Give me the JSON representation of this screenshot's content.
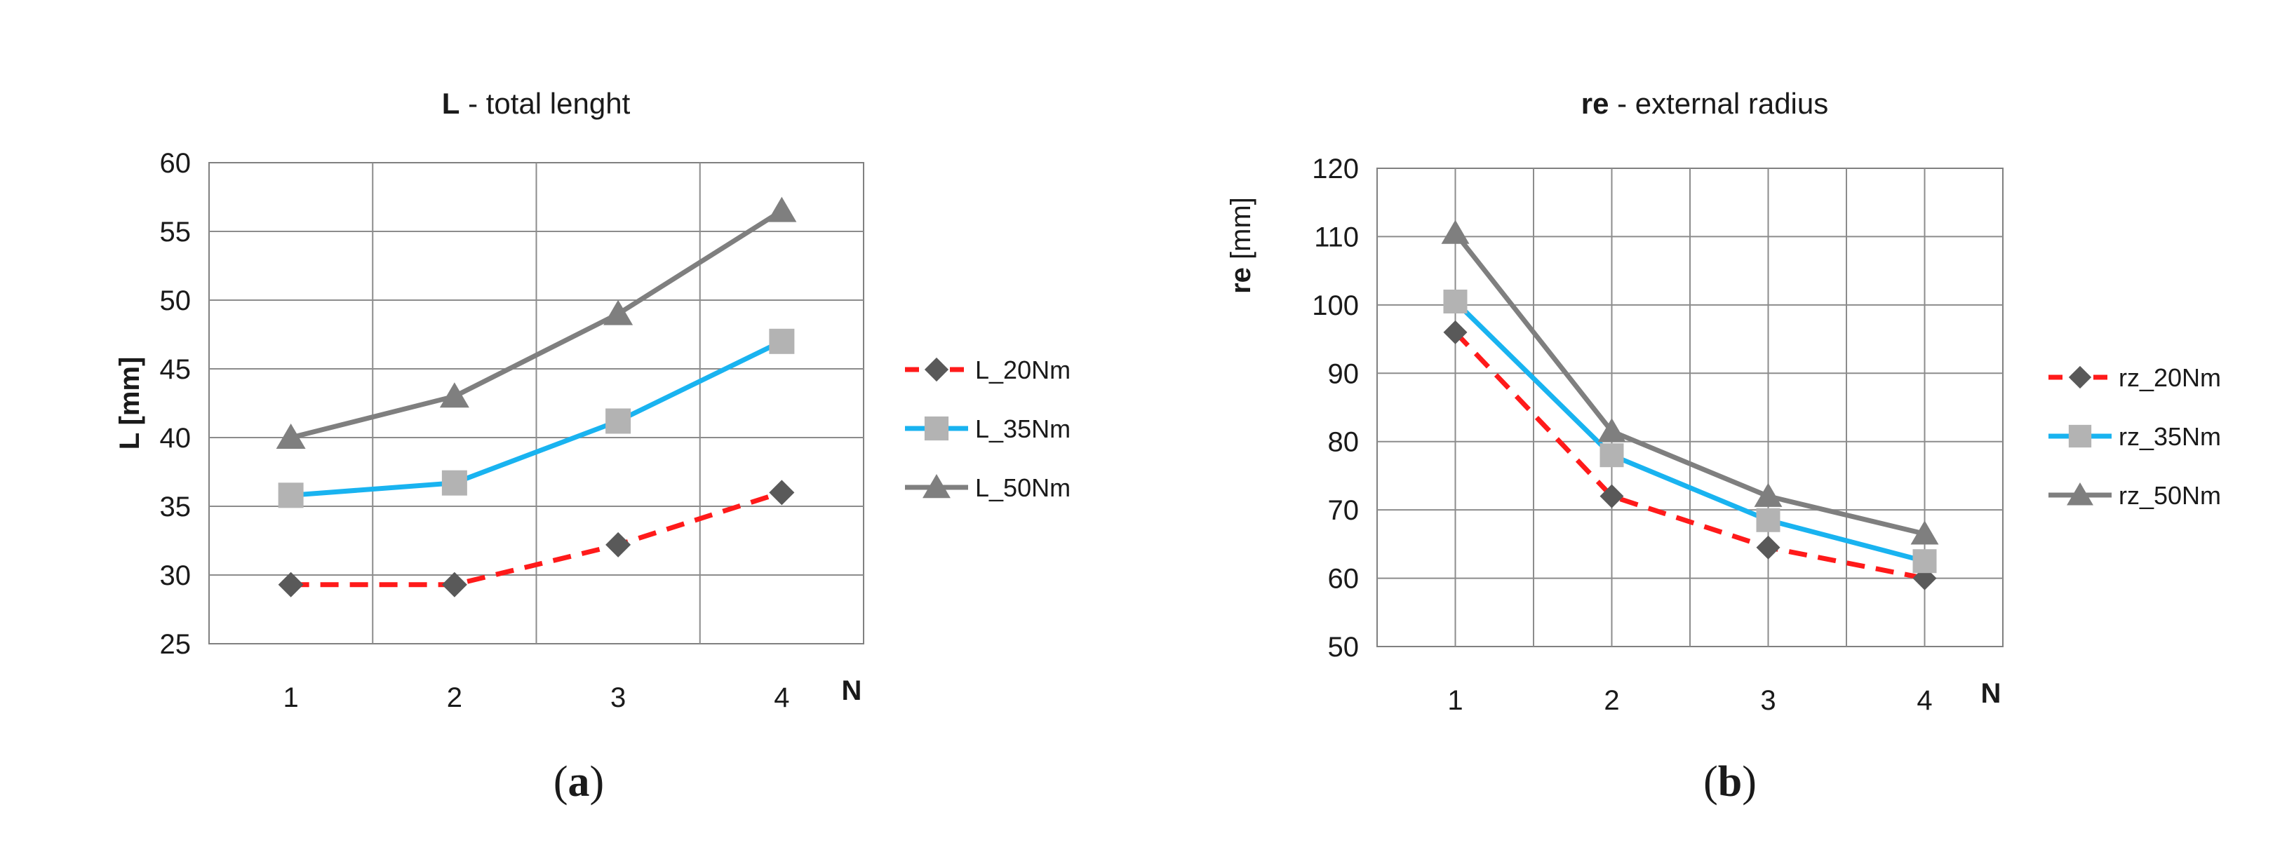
{
  "chart_data": [
    {
      "type": "line",
      "title": "L - total lenght",
      "title_bold": "L",
      "title_rest": " - total lenght",
      "xlabel": "N",
      "ylabel": "L [mm]",
      "categories": [
        "1",
        "2",
        "3",
        "4"
      ],
      "ylim": [
        25,
        60
      ],
      "yticks": [
        25,
        30,
        35,
        40,
        45,
        50,
        55,
        60
      ],
      "grid": true,
      "legend_position": "right",
      "caption": "(a)",
      "caption_letter": "a",
      "series": [
        {
          "name": "L_20Nm",
          "values": [
            29.3,
            29.3,
            32.2,
            36.0
          ],
          "color": "#ff1a1a",
          "marker_color": "#595959",
          "marker": "diamond",
          "dashed": true
        },
        {
          "name": "L_35Nm",
          "values": [
            35.8,
            36.7,
            41.2,
            47.0
          ],
          "color": "#19b3f0",
          "marker_color": "#b3b3b3",
          "marker": "square",
          "dashed": false
        },
        {
          "name": "L_50Nm",
          "values": [
            40.0,
            43.0,
            49.0,
            56.5
          ],
          "color": "#7f7f7f",
          "marker_color": "#7f7f7f",
          "marker": "triangle",
          "dashed": false
        }
      ]
    },
    {
      "type": "line",
      "title": "re - external radius",
      "title_bold": "re",
      "title_rest": " - external radius",
      "xlabel": "N",
      "ylabel": "re [mm]",
      "ylabel_bold": "re",
      "ylabel_rest": " [mm]",
      "categories": [
        "1",
        "2",
        "3",
        "4"
      ],
      "ylim": [
        50,
        120
      ],
      "yticks": [
        50,
        60,
        70,
        80,
        90,
        100,
        110,
        120
      ],
      "grid": true,
      "legend_position": "right",
      "caption": "(b)",
      "caption_letter": "b",
      "series": [
        {
          "name": "rz_20Nm",
          "values": [
            96,
            72,
            64.5,
            60
          ],
          "color": "#ff1a1a",
          "marker_color": "#595959",
          "marker": "diamond",
          "dashed": true
        },
        {
          "name": "rz_35Nm",
          "values": [
            100.5,
            78,
            68.5,
            62.5
          ],
          "color": "#19b3f0",
          "marker_color": "#b3b3b3",
          "marker": "square",
          "dashed": false
        },
        {
          "name": "rz_50Nm",
          "values": [
            110.5,
            81.5,
            72,
            66.5
          ],
          "color": "#7f7f7f",
          "marker_color": "#7f7f7f",
          "marker": "triangle",
          "dashed": false
        }
      ]
    }
  ]
}
